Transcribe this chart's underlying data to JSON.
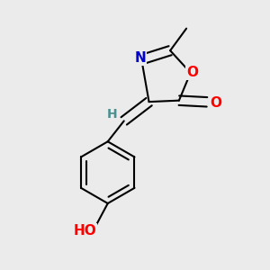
{
  "bg_color": "#ebebeb",
  "bond_color": "#000000",
  "bond_width": 1.5,
  "atom_colors": {
    "O": "#ff0000",
    "N": "#0000cd",
    "H_label": "#4a9090",
    "C": "#000000"
  },
  "font_size_N": 11,
  "font_size_O": 11,
  "font_size_H": 10,
  "font_size_methyl": 10
}
